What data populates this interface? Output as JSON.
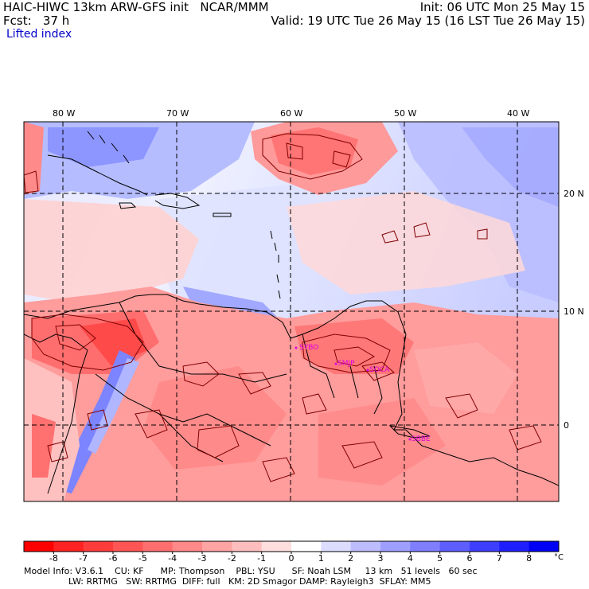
{
  "header": {
    "model_line": "HAIC-HIWC 13km ARW-GFS init   NCAR/MMM",
    "init_line": "Init: 06 UTC Mon 25 May 15",
    "fcst_line": "Fcst:   37 h",
    "valid_line": "Valid: 19 UTC Tue 26 May 15 (16 LST Tue 26 May 15)",
    "field_name": "Lifted index"
  },
  "map": {
    "lon_ticks": [
      "80 W",
      "70 W",
      "60 W",
      "50 W",
      "40 W"
    ],
    "lat_ticks": [
      "20 N",
      "10 N",
      "0"
    ],
    "stations": [
      "SYBO",
      "SMJP",
      "SOCA",
      "SBBE"
    ],
    "colors": {
      "frame": "#000000",
      "coast": "#000000",
      "contour": "#800000",
      "station": "#e000e0"
    }
  },
  "colorbar": {
    "labels": [
      "-8",
      "-7",
      "-6",
      "-5",
      "-4",
      "-3",
      "-2",
      "-1",
      "0",
      "1",
      "2",
      "3",
      "4",
      "5",
      "6",
      "7",
      "8"
    ],
    "unit": "°C",
    "colors": [
      "#ff0000",
      "#ff2222",
      "#ff3c3c",
      "#ff5555",
      "#ff6e6e",
      "#ff8888",
      "#ffa3a3",
      "#ffbebe",
      "#ffdede",
      "#ffffff",
      "#dcdcff",
      "#bcbcff",
      "#9e9eff",
      "#7e7eff",
      "#5e5eff",
      "#3e3eff",
      "#1e1eff",
      "#0000f5"
    ]
  },
  "model_info": {
    "line1": "Model Info: V3.6.1    CU: KF      MP: Thompson    PBL: YSU      SF: Noah LSM     13 km   51 levels   60 sec",
    "line2": "                LW: RRTMG   SW: RRTMG  DIFF: full   KM: 2D Smagor DAMP: Rayleigh3  SFLAY: MM5"
  }
}
